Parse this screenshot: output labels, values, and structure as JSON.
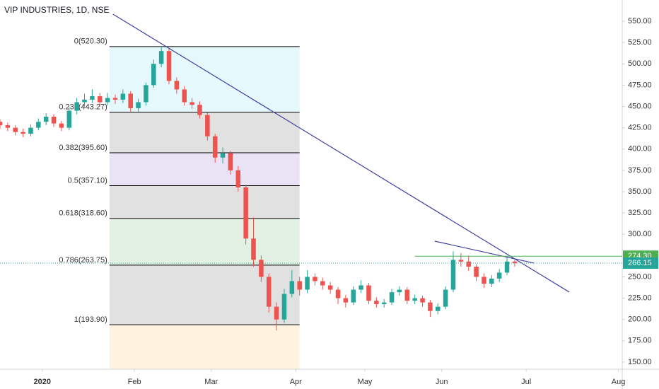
{
  "chart_data": {
    "type": "candlestick",
    "title": "VIP INDUSTRIES, 1D, NSE",
    "up_color": "#26a69a",
    "down_color": "#ef5350",
    "xlim": [
      -11,
      151
    ],
    "ylim": [
      142,
      558
    ],
    "xticks": [
      {
        "value": 0,
        "label": "2020"
      },
      {
        "value": 24,
        "label": "Feb"
      },
      {
        "value": 44,
        "label": "Mar"
      },
      {
        "value": 66,
        "label": "Apr"
      },
      {
        "value": 84,
        "label": "May"
      },
      {
        "value": 104,
        "label": "Jun"
      },
      {
        "value": 126,
        "label": "Jul"
      },
      {
        "value": 150,
        "label": "Aug"
      }
    ],
    "yticks": [
      {
        "value": 150,
        "label": "150.00"
      },
      {
        "value": 175,
        "label": "175.00"
      },
      {
        "value": 200,
        "label": "200.00"
      },
      {
        "value": 225,
        "label": "225.00"
      },
      {
        "value": 250,
        "label": "250.00"
      },
      {
        "value": 275,
        "label": "275.00"
      },
      {
        "value": 300,
        "label": "300.00"
      },
      {
        "value": 325,
        "label": "325.00"
      },
      {
        "value": 350,
        "label": "350.00"
      },
      {
        "value": 375,
        "label": "375.00"
      },
      {
        "value": 400,
        "label": "400.00"
      },
      {
        "value": 425,
        "label": "425.00"
      },
      {
        "value": 450,
        "label": "450.00"
      },
      {
        "value": 475,
        "label": "475.00"
      },
      {
        "value": 500,
        "label": "500.00"
      },
      {
        "value": 525,
        "label": "525.00"
      },
      {
        "value": 550,
        "label": "550.00"
      }
    ],
    "x": [
      -11,
      -9,
      -7,
      -5,
      -3,
      -1,
      1,
      3,
      5,
      7,
      9,
      11,
      13,
      15,
      17,
      19,
      21,
      23,
      25,
      27,
      29,
      31,
      33,
      35,
      37,
      39,
      41,
      43,
      45,
      47,
      49,
      51,
      53,
      55,
      57,
      59,
      61,
      63,
      65,
      67,
      69,
      71,
      73,
      75,
      77,
      79,
      81,
      83,
      85,
      87,
      89,
      91,
      93,
      95,
      97,
      99,
      101,
      103,
      105,
      107,
      109,
      111,
      113,
      115,
      117,
      119,
      121,
      123
    ],
    "open": [
      432,
      428,
      425,
      420,
      418,
      425,
      432,
      438,
      430,
      425,
      445,
      455,
      458,
      462,
      455,
      460,
      458,
      465,
      448,
      455,
      475,
      500,
      515,
      480,
      470,
      455,
      452,
      440,
      415,
      390,
      395,
      375,
      355,
      295,
      270,
      250,
      215,
      200,
      230,
      245,
      235,
      250,
      245,
      240,
      235,
      225,
      220,
      235,
      240,
      222,
      218,
      220,
      232,
      235,
      222,
      225,
      220,
      210,
      215,
      235,
      270,
      268,
      262,
      250,
      242,
      248,
      255,
      268
    ],
    "high": [
      435,
      431,
      428,
      424,
      429,
      436,
      442,
      441,
      433,
      449,
      460,
      465,
      470,
      466,
      466,
      464,
      470,
      468,
      459,
      478,
      505,
      520.3,
      518,
      484,
      474,
      460,
      456,
      443,
      418,
      402,
      398,
      380,
      358,
      320,
      275,
      254,
      220,
      236,
      258,
      250,
      258,
      254,
      249,
      244,
      238,
      229,
      239,
      246,
      243,
      226,
      224,
      236,
      239,
      238,
      229,
      228,
      223,
      219,
      239,
      280,
      278,
      275,
      265,
      254,
      252,
      259,
      274.3,
      270
    ],
    "low": [
      424,
      421,
      416,
      414,
      415,
      422,
      428,
      426,
      421,
      422,
      441,
      450,
      454,
      450,
      451,
      453,
      454,
      444,
      444,
      451,
      472,
      496,
      476,
      465,
      451,
      447,
      436,
      410,
      384,
      383,
      370,
      350,
      288,
      262,
      244,
      208,
      187,
      196,
      226,
      228,
      231,
      240,
      235,
      230,
      218,
      214,
      217,
      231,
      218,
      214,
      214,
      217,
      228,
      218,
      218,
      215,
      203,
      206,
      212,
      232,
      262,
      257,
      245,
      237,
      238,
      244,
      252,
      262
    ],
    "close": [
      428,
      425,
      420,
      418,
      425,
      432,
      438,
      430,
      425,
      445,
      455,
      458,
      462,
      455,
      460,
      458,
      465,
      448,
      455,
      475,
      500,
      515,
      480,
      470,
      455,
      452,
      440,
      415,
      390,
      395,
      375,
      355,
      295,
      270,
      250,
      215,
      200,
      230,
      245,
      235,
      250,
      245,
      240,
      235,
      225,
      220,
      235,
      240,
      222,
      218,
      220,
      232,
      235,
      222,
      225,
      220,
      210,
      215,
      235,
      270,
      268,
      262,
      250,
      242,
      248,
      255,
      268,
      266.15
    ],
    "fib": {
      "x_range": [
        17.5,
        67
      ],
      "line_color": "#000000",
      "levels": [
        {
          "price": 520.3,
          "label": "0(520.30)",
          "label_color": "#131722",
          "fill": "#dff6fb"
        },
        {
          "price": 443.27,
          "label": "0.236(443.27)",
          "label_color": "#7fd6dd",
          "fill": "#d9d9d9"
        },
        {
          "price": 395.6,
          "label": "0.382(395.60)",
          "label_color": "#131722",
          "fill": "#e3dcf3"
        },
        {
          "price": 357.1,
          "label": "0.5(357.10)",
          "label_color": "#7e57c2",
          "fill": "#d9d9d9"
        },
        {
          "price": 318.6,
          "label": "0.618(318.60)",
          "label_color": "#131722",
          "fill": "#dbeedc"
        },
        {
          "price": 263.75,
          "label": "0.786(263.75)",
          "label_color": "#43a047",
          "fill": "#d9d9d9"
        },
        {
          "price": 193.9,
          "label": "1(193.90)",
          "label_color": "#131722",
          "fill": "#fdf0d7"
        }
      ]
    },
    "trend_lines": [
      {
        "x": [
          18.4,
          137.2
        ],
        "y": [
          558.3,
          232.2
        ],
        "color": "#3f3fa0"
      },
      {
        "x": [
          102.2,
          128
        ],
        "y": [
          291.9,
          266.2
        ],
        "color": "#3f3fa0"
      }
    ],
    "price_lines": [
      {
        "value": 274.3,
        "label": "274.30",
        "color": "#4caf50",
        "x_start": 97,
        "dotted": false
      },
      {
        "value": 266.15,
        "label": "266.15",
        "color": "#26a69a",
        "x_start": -11,
        "dotted": true
      }
    ]
  }
}
